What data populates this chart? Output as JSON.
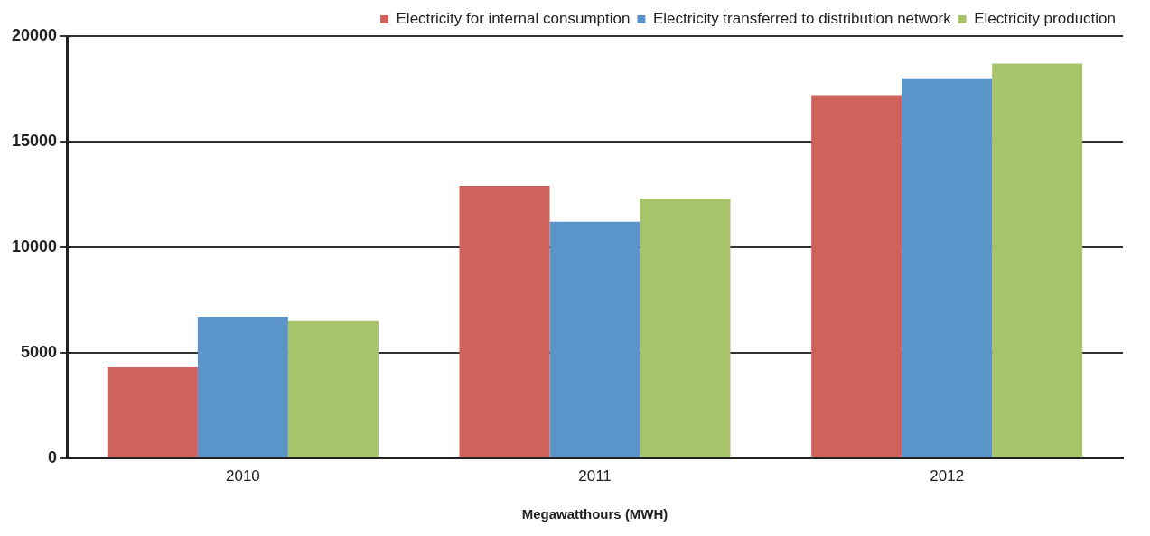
{
  "chart_data": {
    "type": "bar",
    "xlabel": "Megawatthours (MWH)",
    "categories": [
      "2010",
      "2011",
      "2012"
    ],
    "series": [
      {
        "name": "Electricity for internal consumption",
        "color": "#cf635c",
        "values": [
          4300,
          12900,
          17200
        ]
      },
      {
        "name": "Electricity transferred to distribution network",
        "color": "#5b94c9",
        "values": [
          6700,
          11200,
          18000
        ]
      },
      {
        "name": "Electricity production",
        "color": "#a8c46a",
        "values": [
          6500,
          12300,
          18700
        ]
      }
    ],
    "ylim": [
      0,
      20000
    ],
    "yticks": [
      0,
      5000,
      10000,
      15000,
      20000
    ],
    "grid": "y",
    "legend": "top"
  }
}
